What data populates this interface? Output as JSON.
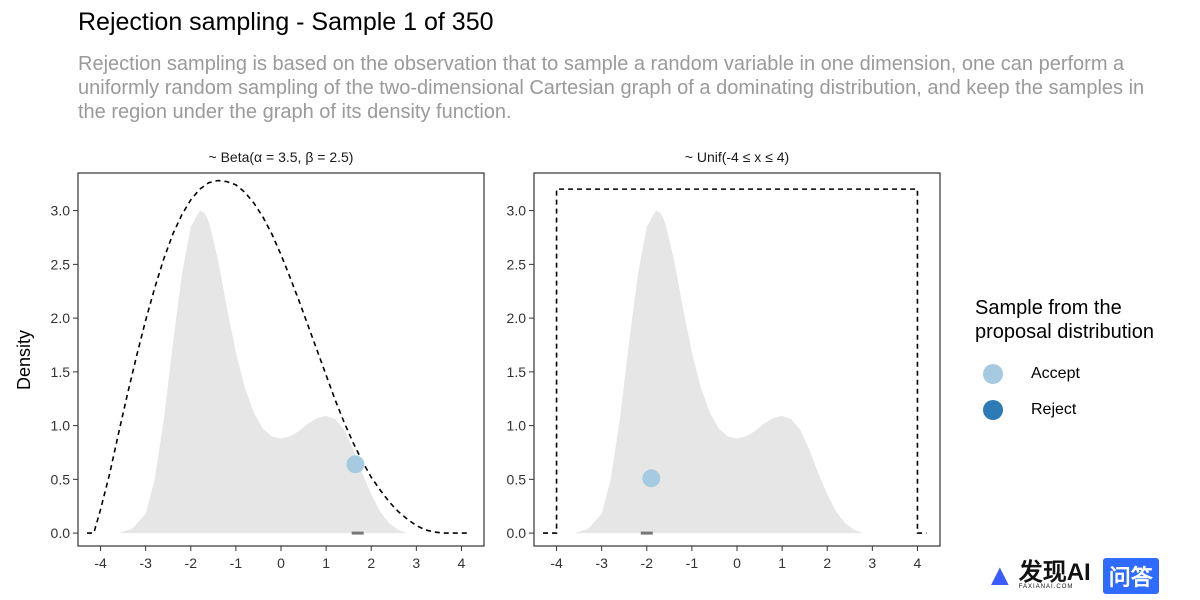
{
  "page": {
    "title": "Rejection sampling - Sample 1 of 350",
    "subtitle": "Rejection sampling is based on the observation that to sample a random variable in one dimension, one can perform a uniformly random sampling of the two-dimensional Cartesian graph of a dominating distribution, and keep the samples in the region under the graph of its density function."
  },
  "legend": {
    "title": "Sample from the\nproposal distribution",
    "items": [
      {
        "label": "Accept",
        "color": "#a6cbe0"
      },
      {
        "label": "Reject",
        "color": "#2c7bb6"
      }
    ]
  },
  "logo": {
    "text": "发现AI",
    "sub": "FAXIANAI.COM",
    "badge": "问答"
  },
  "colors": {
    "target_fill": "#e6e6e6",
    "envelope_line": "#000000",
    "accept": "#a6cbe0",
    "reject": "#2c7bb6",
    "rug": "#777777"
  },
  "chart_data": [
    {
      "type": "area",
      "panel_label": "~ Beta(α = 3.5, β = 2.5)",
      "ylabel": "Density",
      "xlim": [
        -4.5,
        4.5
      ],
      "ylim": [
        -0.12,
        3.35
      ],
      "x_ticks": [
        -4,
        -3,
        -2,
        -1,
        0,
        1,
        2,
        3,
        4
      ],
      "y_ticks": [
        0.0,
        0.5,
        1.0,
        1.5,
        2.0,
        2.5,
        3.0
      ],
      "y_tick_labels": [
        "0.0",
        "0.5",
        "1.0",
        "1.5",
        "2.0",
        "2.5",
        "3.0"
      ],
      "target_density": {
        "x": [
          -3.6,
          -3.3,
          -3.0,
          -2.8,
          -2.6,
          -2.4,
          -2.2,
          -2.0,
          -1.8,
          -1.7,
          -1.6,
          -1.4,
          -1.2,
          -1.0,
          -0.8,
          -0.6,
          -0.4,
          -0.2,
          0.0,
          0.2,
          0.4,
          0.6,
          0.8,
          1.0,
          1.2,
          1.4,
          1.6,
          1.8,
          2.0,
          2.2,
          2.4,
          2.6,
          2.8,
          3.0,
          3.2
        ],
        "y": [
          0.0,
          0.04,
          0.18,
          0.5,
          1.05,
          1.75,
          2.4,
          2.85,
          3.0,
          2.98,
          2.9,
          2.55,
          2.1,
          1.68,
          1.35,
          1.12,
          0.97,
          0.9,
          0.88,
          0.9,
          0.95,
          1.02,
          1.07,
          1.09,
          1.06,
          0.96,
          0.78,
          0.56,
          0.36,
          0.2,
          0.09,
          0.03,
          0.0,
          0.0,
          0.0
        ]
      },
      "envelope": {
        "style": "dashed",
        "x": [
          -4.3,
          -4.15,
          -4.0,
          -3.8,
          -3.6,
          -3.4,
          -3.2,
          -3.0,
          -2.8,
          -2.6,
          -2.4,
          -2.2,
          -2.0,
          -1.8,
          -1.6,
          -1.4,
          -1.2,
          -1.0,
          -0.8,
          -0.6,
          -0.4,
          -0.2,
          0.0,
          0.2,
          0.4,
          0.6,
          0.8,
          1.0,
          1.2,
          1.4,
          1.6,
          1.8,
          2.0,
          2.2,
          2.4,
          2.6,
          2.8,
          3.0,
          3.2,
          3.4,
          3.6,
          3.8,
          4.0,
          4.15
        ],
        "y": [
          0.0,
          0.0,
          0.22,
          0.55,
          0.93,
          1.3,
          1.65,
          1.98,
          2.28,
          2.55,
          2.78,
          2.96,
          3.1,
          3.2,
          3.26,
          3.28,
          3.27,
          3.24,
          3.17,
          3.07,
          2.94,
          2.78,
          2.59,
          2.38,
          2.16,
          1.93,
          1.7,
          1.47,
          1.24,
          1.03,
          0.84,
          0.67,
          0.52,
          0.4,
          0.29,
          0.2,
          0.13,
          0.07,
          0.03,
          0.01,
          0.0,
          0.0,
          0.0,
          0.0
        ]
      },
      "points": [
        {
          "x": 1.65,
          "y": 0.64,
          "status": "Accept"
        }
      ],
      "rug": [
        1.7
      ]
    },
    {
      "type": "area",
      "panel_label": "~ Unif(-4 ≤ x ≤ 4)",
      "xlim": [
        -4.5,
        4.5
      ],
      "ylim": [
        -0.12,
        3.35
      ],
      "x_ticks": [
        -4,
        -3,
        -2,
        -1,
        0,
        1,
        2,
        3,
        4
      ],
      "y_ticks": [
        0.0,
        0.5,
        1.0,
        1.5,
        2.0,
        2.5,
        3.0
      ],
      "y_tick_labels": [
        "0.0",
        "0.5",
        "1.0",
        "1.5",
        "2.0",
        "2.5",
        "3.0"
      ],
      "target_density": {
        "x": [
          -3.6,
          -3.3,
          -3.0,
          -2.8,
          -2.6,
          -2.4,
          -2.2,
          -2.0,
          -1.8,
          -1.7,
          -1.6,
          -1.4,
          -1.2,
          -1.0,
          -0.8,
          -0.6,
          -0.4,
          -0.2,
          0.0,
          0.2,
          0.4,
          0.6,
          0.8,
          1.0,
          1.2,
          1.4,
          1.6,
          1.8,
          2.0,
          2.2,
          2.4,
          2.6,
          2.8,
          3.0,
          3.2
        ],
        "y": [
          0.0,
          0.04,
          0.18,
          0.5,
          1.05,
          1.75,
          2.4,
          2.85,
          3.0,
          2.98,
          2.9,
          2.55,
          2.1,
          1.68,
          1.35,
          1.12,
          0.97,
          0.9,
          0.88,
          0.9,
          0.95,
          1.02,
          1.07,
          1.09,
          1.06,
          0.96,
          0.78,
          0.56,
          0.36,
          0.2,
          0.09,
          0.03,
          0.0,
          0.0,
          0.0
        ]
      },
      "envelope": {
        "style": "dashed",
        "x": [
          -4.3,
          -4.0,
          -4.0,
          4.0,
          4.0,
          4.2
        ],
        "y": [
          0.0,
          0.0,
          3.2,
          3.2,
          0.0,
          0.0
        ]
      },
      "points": [
        {
          "x": -1.9,
          "y": 0.51,
          "status": "Accept"
        }
      ],
      "rug": [
        -2.0
      ]
    }
  ]
}
